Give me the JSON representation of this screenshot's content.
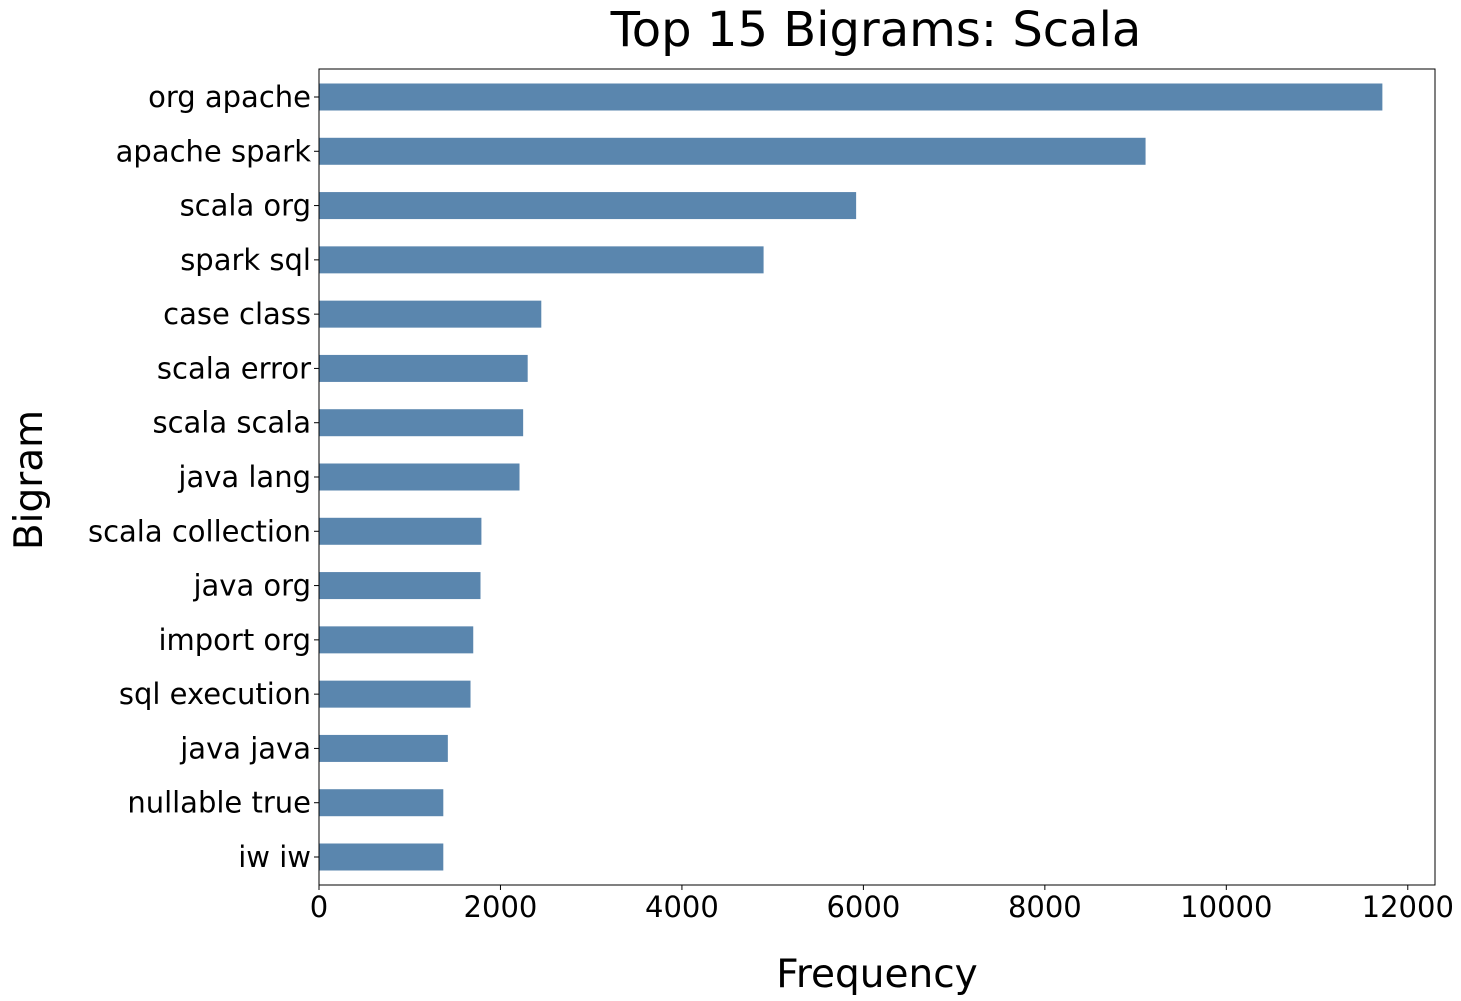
{
  "chart_data": {
    "type": "bar",
    "orientation": "horizontal",
    "title": "Top 15 Bigrams: Scala",
    "xlabel": "Frequency",
    "ylabel": "Bigram",
    "categories": [
      "org apache",
      "apache spark",
      "scala org",
      "spark sql",
      "case class",
      "scala error",
      "scala scala",
      "java lang",
      "scala collection",
      "java org",
      "import org",
      "sql execution",
      "java java",
      "nullable true",
      "iw iw"
    ],
    "values": [
      11720,
      9110,
      5920,
      4900,
      2450,
      2300,
      2250,
      2210,
      1790,
      1780,
      1700,
      1670,
      1420,
      1370,
      1370
    ],
    "xlim": [
      0,
      12300
    ],
    "xticks": [
      0,
      2000,
      4000,
      6000,
      8000,
      10000,
      12000
    ],
    "xtick_labels": [
      "0",
      "2000",
      "4000",
      "6000",
      "8000",
      "10000",
      "12000"
    ],
    "grid": false,
    "legend": "none",
    "bar_color": "#5a86ae"
  }
}
